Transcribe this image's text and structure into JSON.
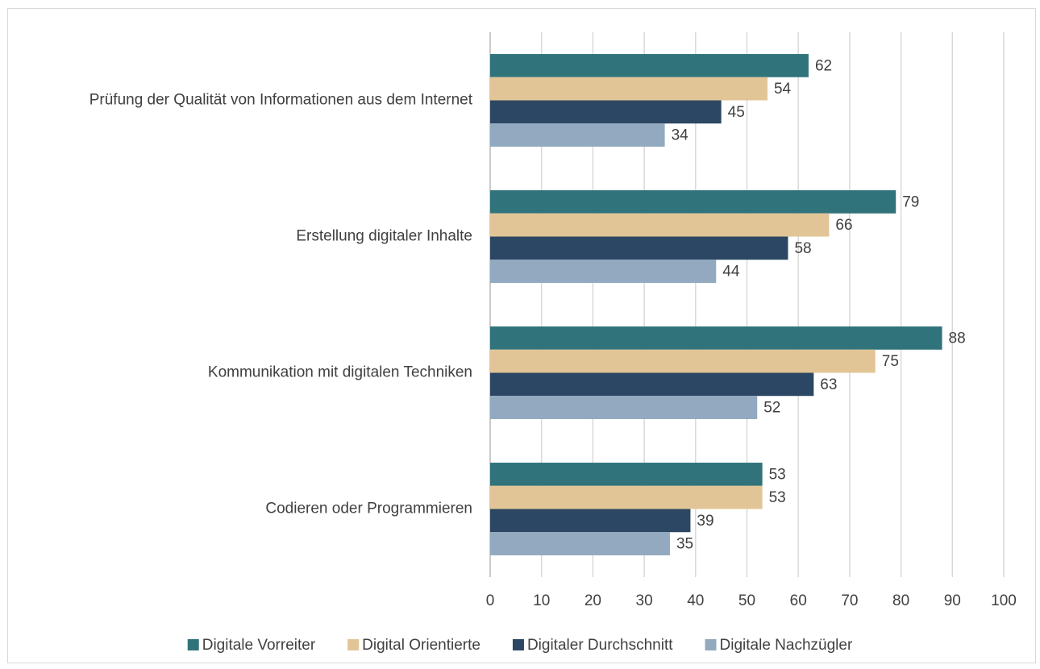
{
  "chart_data": {
    "type": "bar",
    "orientation": "horizontal",
    "categories": [
      "Prüfung der Qualität von Informationen aus dem Internet",
      "Erstellung digitaler Inhalte",
      "Kommunikation mit digitalen Techniken",
      "Codieren oder Programmieren"
    ],
    "series": [
      {
        "name": "Digitale Vorreiter",
        "color": "#31737b",
        "values": [
          62,
          79,
          88,
          53
        ]
      },
      {
        "name": "Digital Orientierte",
        "color": "#e2c596",
        "values": [
          54,
          66,
          75,
          53
        ]
      },
      {
        "name": "Digitaler Durchschnitt",
        "color": "#2c4763",
        "values": [
          45,
          58,
          63,
          39
        ]
      },
      {
        "name": "Digitale Nachzügler",
        "color": "#93a9bf",
        "values": [
          34,
          44,
          52,
          35
        ]
      }
    ],
    "xlim": [
      0,
      100
    ],
    "xticks": [
      0,
      10,
      20,
      30,
      40,
      50,
      60,
      70,
      80,
      90,
      100
    ],
    "grid": true,
    "legend": "bottom"
  }
}
